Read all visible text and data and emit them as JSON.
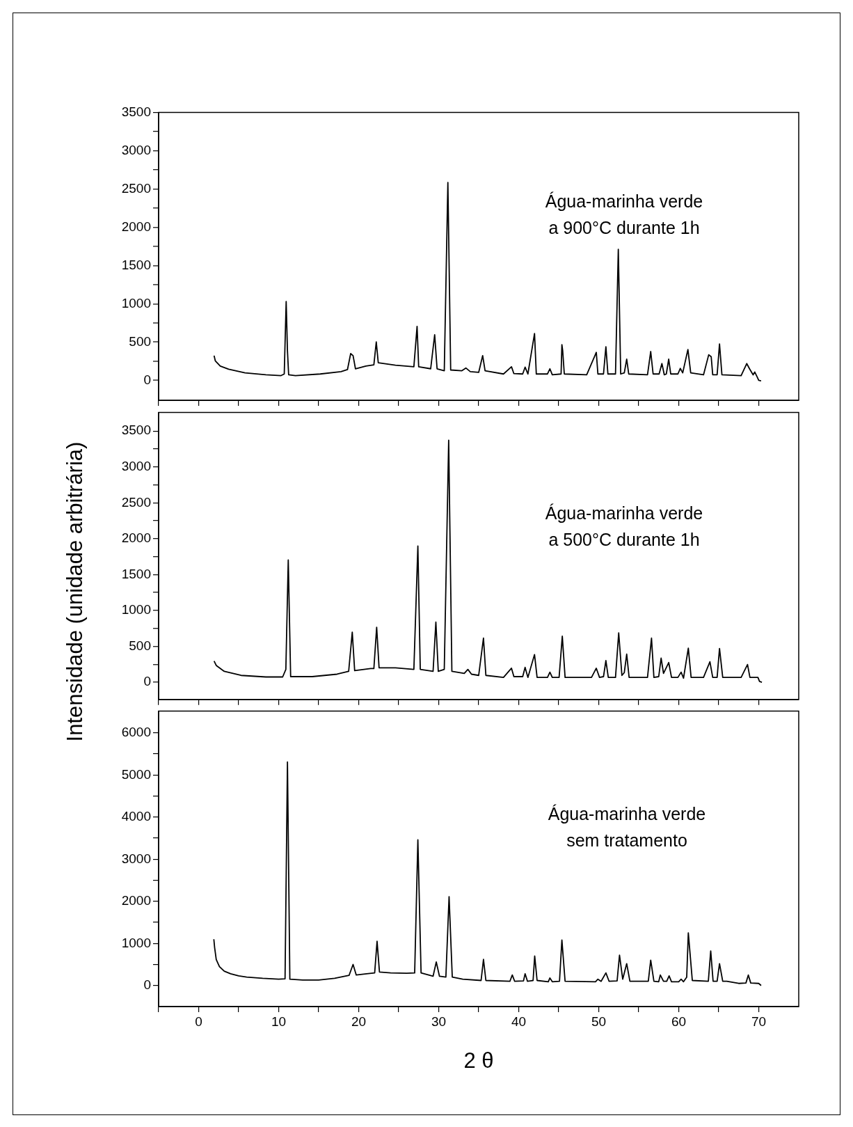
{
  "chart_data": [
    {
      "type": "line",
      "annotations": [
        "Água-marinha verde\na 900°C durante 1h"
      ],
      "ylabel": "Intensidade  (unidade arbitrária)",
      "xlim": [
        -5,
        75
      ],
      "xticks": [
        {
          "value": -5,
          "label": null
        },
        0,
        {
          "value": 5,
          "label": null
        },
        10,
        {
          "value": 15,
          "label": null
        },
        20,
        {
          "value": 25,
          "label": null
        },
        30,
        {
          "value": 35,
          "label": null
        },
        40,
        {
          "value": 45,
          "label": null
        },
        50,
        {
          "value": 55,
          "label": null
        },
        60,
        {
          "value": 65,
          "label": null
        },
        70
      ],
      "ylim": [
        -260,
        3500
      ],
      "yticks": [
        0,
        {
          "value": 250,
          "label": null
        },
        500,
        {
          "value": 750,
          "label": null
        },
        1000,
        {
          "value": 1250,
          "label": null
        },
        1500,
        {
          "value": 1750,
          "label": null
        },
        2000,
        {
          "value": 2250,
          "label": null
        },
        2500,
        {
          "value": 2750,
          "label": null
        },
        3000,
        {
          "value": 3250,
          "label": null
        },
        3500
      ],
      "tick_labels": "y",
      "grid": false,
      "legend": false,
      "marker": "none",
      "series": [
        {
          "color": "#000000",
          "x": [
            1.93,
            2.08,
            2.7,
            3.75,
            5.8,
            8.4,
            10.3,
            10.7,
            10.94,
            11.1,
            11.25,
            12.1,
            15.2,
            17.8,
            18.6,
            19.0,
            19.3,
            19.6,
            20.9,
            21.9,
            22.2,
            22.45,
            24.6,
            26.9,
            27.3,
            27.5,
            29.0,
            29.5,
            29.8,
            30.7,
            31.15,
            31.5,
            32.9,
            33.4,
            33.95,
            35.0,
            35.5,
            35.8,
            38.1,
            39.1,
            39.4,
            40.5,
            40.8,
            41.15,
            41.98,
            42.2,
            43.6,
            43.9,
            44.2,
            45.3,
            45.4,
            45.5,
            45.7,
            48.5,
            49.7,
            49.9,
            50.6,
            50.9,
            51.15,
            52.1,
            52.45,
            52.75,
            53.2,
            53.5,
            53.75,
            56.1,
            56.5,
            56.8,
            57.55,
            57.9,
            58.2,
            58.45,
            58.75,
            59.0,
            59.9,
            60.2,
            60.5,
            61.15,
            61.5,
            63.1,
            63.75,
            64.06,
            64.25,
            64.8,
            65.1,
            65.4,
            67.8,
            68.5,
            68.85,
            69.3,
            69.5,
            69.8,
            70.0,
            70.3
          ],
          "values": [
            324,
            256,
            188,
            146,
            99,
            73,
            63,
            84,
            1031,
            387,
            73,
            63,
            84,
            115,
            141,
            350,
            324,
            152,
            188,
            204,
            502,
            230,
            199,
            178,
            706,
            178,
            152,
            596,
            152,
            126,
            2585,
            136,
            126,
            162,
            115,
            105,
            324,
            126,
            84,
            178,
            89,
            84,
            173,
            84,
            612,
            84,
            84,
            152,
            73,
            84,
            466,
            387,
            84,
            73,
            366,
            84,
            84,
            440,
            84,
            84,
            1711,
            84,
            99,
            277,
            84,
            73,
            377,
            84,
            84,
            220,
            73,
            84,
            277,
            84,
            84,
            157,
            99,
            403,
            99,
            73,
            335,
            309,
            73,
            73,
            476,
            73,
            63,
            220,
            152,
            73,
            110,
            47,
            0,
            -5
          ]
        }
      ]
    },
    {
      "type": "line",
      "annotations": [
        "Água-marinha verde\na 500°C durante 1h"
      ],
      "xlim": [
        -5,
        75
      ],
      "xticks": [
        {
          "value": -5,
          "label": null
        },
        0,
        {
          "value": 5,
          "label": null
        },
        10,
        {
          "value": 15,
          "label": null
        },
        20,
        {
          "value": 25,
          "label": null
        },
        30,
        {
          "value": 35,
          "label": null
        },
        40,
        {
          "value": 45,
          "label": null
        },
        50,
        {
          "value": 55,
          "label": null
        },
        60,
        {
          "value": 65,
          "label": null
        },
        70
      ],
      "ylim": [
        -240,
        3760
      ],
      "yticks": [
        0,
        {
          "value": 250,
          "label": null
        },
        500,
        {
          "value": 750,
          "label": null
        },
        1000,
        {
          "value": 1250,
          "label": null
        },
        1500,
        {
          "value": 1750,
          "label": null
        },
        2000,
        {
          "value": 2250,
          "label": null
        },
        2500,
        {
          "value": 2750,
          "label": null
        },
        3000,
        {
          "value": 3250,
          "label": null
        },
        3500
      ],
      "tick_labels": "y",
      "grid": false,
      "legend": false,
      "marker": "none",
      "series": [
        {
          "color": "#000000",
          "x": [
            1.93,
            2.2,
            3.2,
            5.3,
            8.4,
            10.5,
            10.9,
            11.2,
            11.5,
            14.2,
            17.3,
            18.75,
            19.2,
            19.5,
            21.5,
            21.9,
            22.25,
            22.55,
            24.6,
            26.9,
            27.4,
            27.7,
            29.3,
            29.65,
            29.95,
            30.7,
            31.25,
            31.65,
            33.2,
            33.65,
            34.1,
            35.0,
            35.6,
            35.9,
            38.1,
            39.1,
            39.4,
            40.5,
            40.8,
            41.15,
            41.98,
            42.3,
            43.6,
            43.9,
            44.2,
            45.05,
            45.45,
            45.8,
            49.1,
            49.7,
            50.1,
            50.6,
            50.9,
            51.2,
            52.1,
            52.5,
            52.9,
            53.2,
            53.5,
            53.8,
            56.1,
            56.6,
            56.9,
            57.5,
            57.8,
            58.1,
            58.75,
            59.1,
            59.9,
            60.3,
            60.6,
            61.2,
            61.55,
            63.1,
            63.9,
            64.25,
            64.8,
            65.1,
            65.5,
            67.8,
            68.6,
            68.9,
            69.9,
            70.1,
            70.4
          ],
          "values": [
            296,
            234,
            151,
            95,
            73,
            73,
            179,
            1703,
            78,
            78,
            112,
            151,
            698,
            162,
            190,
            190,
            765,
            201,
            201,
            179,
            1898,
            179,
            151,
            837,
            151,
            179,
            3372,
            151,
            123,
            179,
            112,
            95,
            614,
            95,
            67,
            195,
            78,
            78,
            207,
            67,
            385,
            67,
            67,
            140,
            67,
            67,
            642,
            67,
            67,
            195,
            67,
            78,
            301,
            67,
            67,
            687,
            95,
            134,
            391,
            67,
            67,
            614,
            67,
            78,
            335,
            123,
            274,
            67,
            67,
            140,
            56,
            474,
            67,
            67,
            285,
            67,
            67,
            469,
            67,
            67,
            246,
            67,
            67,
            11,
            0
          ]
        }
      ]
    },
    {
      "type": "line",
      "annotations": [
        "Água-marinha verde\nsem tratamento"
      ],
      "xlabel": "2 θ",
      "xlim": [
        -5,
        75
      ],
      "xticks": [
        {
          "value": -5,
          "label": null
        },
        0,
        {
          "value": 5,
          "label": null
        },
        10,
        {
          "value": 15,
          "label": null
        },
        20,
        {
          "value": 25,
          "label": null
        },
        30,
        {
          "value": 35,
          "label": null
        },
        40,
        {
          "value": 45,
          "label": null
        },
        50,
        {
          "value": 55,
          "label": null
        },
        60,
        {
          "value": 65,
          "label": null
        },
        70
      ],
      "ylim": [
        -500,
        6520
      ],
      "yticks": [
        0,
        {
          "value": 500,
          "label": null
        },
        1000,
        {
          "value": 1500,
          "label": null
        },
        2000,
        {
          "value": 2500,
          "label": null
        },
        3000,
        {
          "value": 3500,
          "label": null
        },
        4000,
        {
          "value": 4500,
          "label": null
        },
        5000,
        {
          "value": 5500,
          "label": null
        },
        6000
      ],
      "grid": false,
      "legend": false,
      "marker": "none",
      "series": [
        {
          "color": "#000000",
          "x": [
            1.9,
            2.0,
            2.2,
            2.6,
            3.2,
            4,
            5,
            6,
            8,
            10,
            10.8,
            11.1,
            11.4,
            13,
            15,
            17,
            18.8,
            19.3,
            19.7,
            21,
            22.0,
            22.3,
            22.6,
            24,
            26,
            27.0,
            27.4,
            27.8,
            29.3,
            29.7,
            30.1,
            30.9,
            31.3,
            31.7,
            33,
            35.3,
            35.6,
            35.9,
            38.9,
            39.2,
            39.5,
            40.6,
            40.8,
            41.1,
            41.8,
            42.0,
            42.3,
            43.7,
            43.9,
            44.2,
            45.1,
            45.4,
            45.8,
            49.6,
            49.9,
            50.3,
            50.9,
            51.3,
            52.3,
            52.6,
            53.0,
            53.5,
            53.9,
            56.2,
            56.5,
            56.9,
            57.5,
            57.7,
            58.1,
            58.5,
            58.8,
            59.1,
            60.0,
            60.3,
            60.6,
            61.0,
            61.2,
            61.4,
            61.7,
            63.7,
            64.0,
            64.3,
            64.8,
            65.1,
            65.5,
            66.0,
            67.5,
            68.4,
            68.7,
            69.0,
            70.0,
            70.3
          ],
          "values": [
            1100,
            900,
            620,
            450,
            340,
            280,
            230,
            200,
            170,
            150,
            160,
            5310,
            150,
            130,
            130,
            170,
            240,
            500,
            250,
            280,
            300,
            1050,
            320,
            300,
            290,
            300,
            3460,
            300,
            220,
            560,
            220,
            200,
            2110,
            200,
            150,
            120,
            620,
            120,
            100,
            250,
            100,
            110,
            280,
            100,
            120,
            700,
            120,
            90,
            180,
            90,
            100,
            1080,
            100,
            90,
            150,
            100,
            300,
            100,
            110,
            720,
            150,
            520,
            100,
            100,
            600,
            100,
            90,
            250,
            100,
            100,
            230,
            90,
            90,
            150,
            90,
            200,
            1250,
            800,
            120,
            100,
            820,
            100,
            100,
            520,
            100,
            100,
            50,
            60,
            250,
            60,
            50,
            0
          ]
        }
      ]
    }
  ]
}
